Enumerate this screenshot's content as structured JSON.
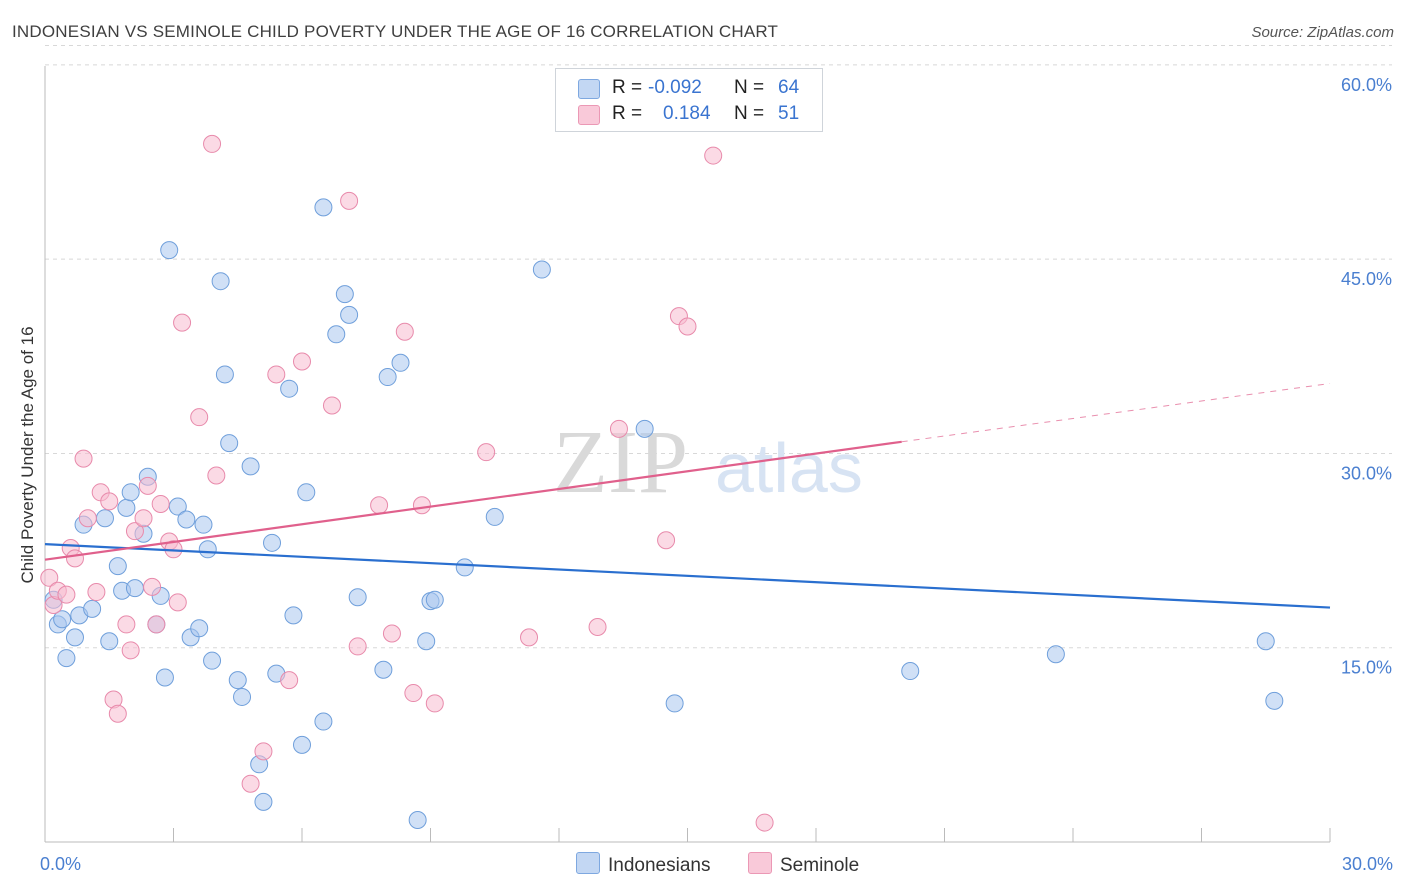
{
  "header": {
    "title": "INDONESIAN VS SEMINOLE CHILD POVERTY UNDER THE AGE OF 16 CORRELATION CHART",
    "source": "Source: ZipAtlas.com"
  },
  "legend": {
    "rows": [
      {
        "r_label": "R =",
        "r_value": "-0.092",
        "n_label": "N =",
        "n_value": "64"
      },
      {
        "r_label": "R =",
        "r_value": "0.184",
        "n_label": "N =",
        "n_value": "51"
      }
    ],
    "bottom": [
      {
        "name": "Indonesians"
      },
      {
        "name": "Seminole"
      }
    ]
  },
  "watermark": {
    "zip": "ZIP",
    "atlas": "atlas"
  },
  "colors": {
    "blue_fill": "#a9c6ee",
    "blue_stroke": "#6f9fdb",
    "blue_line": "#2a6fcf",
    "pink_fill": "#f7bcd0",
    "pink_stroke": "#e88aab",
    "pink_line": "#e0608c",
    "tick_text": "#4a7fd0",
    "grid": "#d8d8d8"
  },
  "chart_data": {
    "type": "scatter",
    "title": "INDONESIAN VS SEMINOLE CHILD POVERTY UNDER THE AGE OF 16 CORRELATION CHART",
    "xlabel": "",
    "ylabel": "Child Poverty Under the Age of 16",
    "xlim": [
      0,
      30
    ],
    "ylim": [
      0,
      62
    ],
    "x_tick_labels": [
      {
        "v": 0,
        "label": "0.0%"
      },
      {
        "v": 30,
        "label": "30.0%"
      }
    ],
    "x_minor_ticks": [
      3,
      6,
      9,
      12,
      15,
      18,
      21,
      24,
      27
    ],
    "y_ticks": [
      {
        "v": 15,
        "label": "15.0%"
      },
      {
        "v": 30,
        "label": "30.0%"
      },
      {
        "v": 45,
        "label": "45.0%"
      },
      {
        "v": 60,
        "label": "60.0%"
      }
    ],
    "y_grid_top": 61.5,
    "series": [
      {
        "name": "Indonesians",
        "color": "blue",
        "R": -0.092,
        "N": 64,
        "trend": {
          "x0": 0,
          "y0": 23.0,
          "x1": 30,
          "y1": 18.1
        },
        "points": [
          [
            0.2,
            18.7
          ],
          [
            0.3,
            16.8
          ],
          [
            0.4,
            17.2
          ],
          [
            0.5,
            14.2
          ],
          [
            0.7,
            15.8
          ],
          [
            0.8,
            17.5
          ],
          [
            0.9,
            24.5
          ],
          [
            1.1,
            18.0
          ],
          [
            1.4,
            25.0
          ],
          [
            1.5,
            15.5
          ],
          [
            1.7,
            21.3
          ],
          [
            1.8,
            19.4
          ],
          [
            1.9,
            25.8
          ],
          [
            2.0,
            27.0
          ],
          [
            2.1,
            19.6
          ],
          [
            2.3,
            23.8
          ],
          [
            2.4,
            28.2
          ],
          [
            2.6,
            16.8
          ],
          [
            2.7,
            19.0
          ],
          [
            2.8,
            12.7
          ],
          [
            2.9,
            45.7
          ],
          [
            3.1,
            25.9
          ],
          [
            3.3,
            24.9
          ],
          [
            3.4,
            15.8
          ],
          [
            3.6,
            16.5
          ],
          [
            3.7,
            24.5
          ],
          [
            3.8,
            22.6
          ],
          [
            3.9,
            14.0
          ],
          [
            4.1,
            43.3
          ],
          [
            4.2,
            36.1
          ],
          [
            4.3,
            30.8
          ],
          [
            4.5,
            12.5
          ],
          [
            4.6,
            11.2
          ],
          [
            4.8,
            29.0
          ],
          [
            5.0,
            6.0
          ],
          [
            5.1,
            3.1
          ],
          [
            5.3,
            23.1
          ],
          [
            5.4,
            13.0
          ],
          [
            5.7,
            35.0
          ],
          [
            5.8,
            17.5
          ],
          [
            6.0,
            7.5
          ],
          [
            6.1,
            27.0
          ],
          [
            6.5,
            9.3
          ],
          [
            6.5,
            49.0
          ],
          [
            6.8,
            39.2
          ],
          [
            7.0,
            42.3
          ],
          [
            7.1,
            40.7
          ],
          [
            7.3,
            18.9
          ],
          [
            7.9,
            13.3
          ],
          [
            8.0,
            35.9
          ],
          [
            8.3,
            37.0
          ],
          [
            8.7,
            1.7
          ],
          [
            8.9,
            15.5
          ],
          [
            9.0,
            18.6
          ],
          [
            9.1,
            18.7
          ],
          [
            9.8,
            21.2
          ],
          [
            10.5,
            25.1
          ],
          [
            11.6,
            44.2
          ],
          [
            14.0,
            31.9
          ],
          [
            14.7,
            10.7
          ],
          [
            20.2,
            13.2
          ],
          [
            23.6,
            14.5
          ],
          [
            28.5,
            15.5
          ],
          [
            28.7,
            10.9
          ]
        ]
      },
      {
        "name": "Seminole",
        "color": "pink",
        "R": 0.184,
        "N": 51,
        "trend": {
          "x0": 0,
          "y0": 21.8,
          "x1": 20.0,
          "y1": 30.9,
          "dash_to_x": 30,
          "dash_to_y": 35.4
        },
        "points": [
          [
            0.1,
            20.4
          ],
          [
            0.2,
            18.3
          ],
          [
            0.3,
            19.4
          ],
          [
            0.5,
            19.1
          ],
          [
            0.6,
            22.7
          ],
          [
            0.7,
            21.9
          ],
          [
            0.9,
            29.6
          ],
          [
            1.0,
            25.0
          ],
          [
            1.2,
            19.3
          ],
          [
            1.3,
            27.0
          ],
          [
            1.5,
            26.3
          ],
          [
            1.6,
            11.0
          ],
          [
            1.7,
            9.9
          ],
          [
            1.9,
            16.8
          ],
          [
            2.0,
            14.8
          ],
          [
            2.1,
            24.0
          ],
          [
            2.3,
            25.0
          ],
          [
            2.4,
            27.5
          ],
          [
            2.5,
            19.7
          ],
          [
            2.6,
            16.8
          ],
          [
            2.7,
            26.1
          ],
          [
            2.9,
            23.2
          ],
          [
            3.0,
            22.6
          ],
          [
            3.1,
            18.5
          ],
          [
            3.2,
            40.1
          ],
          [
            3.6,
            32.8
          ],
          [
            3.9,
            53.9
          ],
          [
            4.0,
            28.3
          ],
          [
            4.8,
            4.5
          ],
          [
            5.1,
            7.0
          ],
          [
            5.4,
            36.1
          ],
          [
            5.7,
            12.5
          ],
          [
            6.0,
            37.1
          ],
          [
            6.7,
            33.7
          ],
          [
            7.1,
            49.5
          ],
          [
            7.3,
            15.1
          ],
          [
            7.8,
            26.0
          ],
          [
            8.1,
            16.1
          ],
          [
            8.4,
            39.4
          ],
          [
            8.6,
            11.5
          ],
          [
            8.8,
            26.0
          ],
          [
            9.1,
            10.7
          ],
          [
            10.3,
            30.1
          ],
          [
            11.3,
            15.8
          ],
          [
            12.9,
            16.6
          ],
          [
            13.4,
            31.9
          ],
          [
            14.5,
            23.3
          ],
          [
            14.8,
            40.6
          ],
          [
            15.0,
            39.8
          ],
          [
            15.6,
            53.0
          ],
          [
            16.8,
            1.5
          ]
        ]
      }
    ]
  }
}
